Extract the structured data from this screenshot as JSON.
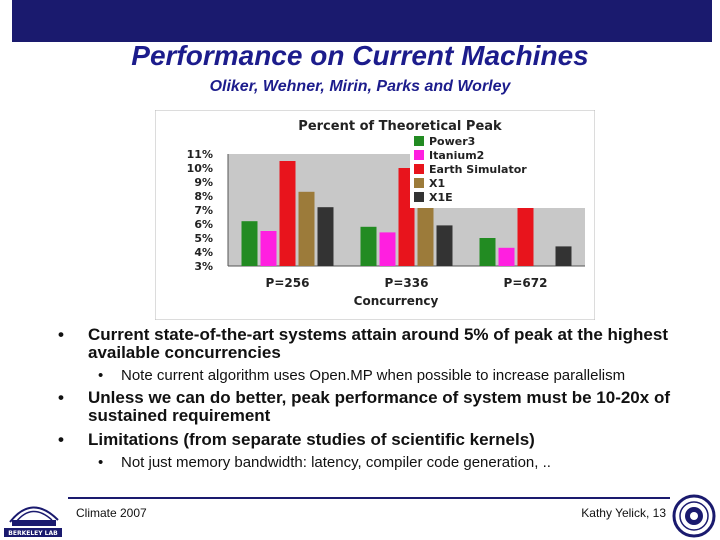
{
  "slide": {
    "title": "Performance on Current Machines",
    "subtitle": "Oliker, Wehner, Mirin, Parks and Worley"
  },
  "chart_data": {
    "type": "bar",
    "title": "Percent of Theoretical Peak",
    "xlabel": "Concurrency",
    "ylabel": "",
    "categories": [
      "P=256",
      "P=336",
      "P=672"
    ],
    "ylim": [
      3,
      11
    ],
    "yticks": [
      "3%",
      "4%",
      "5%",
      "6%",
      "7%",
      "8%",
      "9%",
      "10%",
      "11%"
    ],
    "grid": false,
    "legend_position": "top-right",
    "series": [
      {
        "name": "Power3",
        "color": "#228b22",
        "values": [
          6.2,
          5.8,
          5.0
        ]
      },
      {
        "name": "Itanium2",
        "color": "#ff1fe0",
        "values": [
          5.5,
          5.4,
          4.3
        ]
      },
      {
        "name": "Earth Simulator",
        "color": "#e8141c",
        "values": [
          10.5,
          10.0,
          7.2
        ]
      },
      {
        "name": "X1",
        "color": "#9c7b3a",
        "values": [
          8.3,
          7.7,
          null
        ]
      },
      {
        "name": "X1E",
        "color": "#333333",
        "values": [
          7.2,
          5.9,
          4.4
        ]
      }
    ]
  },
  "bullets": {
    "b1": "Current state-of-the-art systems attain around 5% of peak at the highest available concurrencies",
    "b1_sub": "Note current algorithm uses Open.MP when possible to increase parallelism",
    "b2": "Unless we can do better, peak performance of system must be 10-20x of sustained requirement",
    "b3": "Limitations (from separate studies of scientific kernels)",
    "b3_sub": "Not just memory bandwidth: latency, compiler code generation, ..",
    "marker": "•"
  },
  "footer": {
    "left": "Climate 2007",
    "right": "Kathy Yelick, 13",
    "logo_text": "BERKELEY LAB"
  }
}
